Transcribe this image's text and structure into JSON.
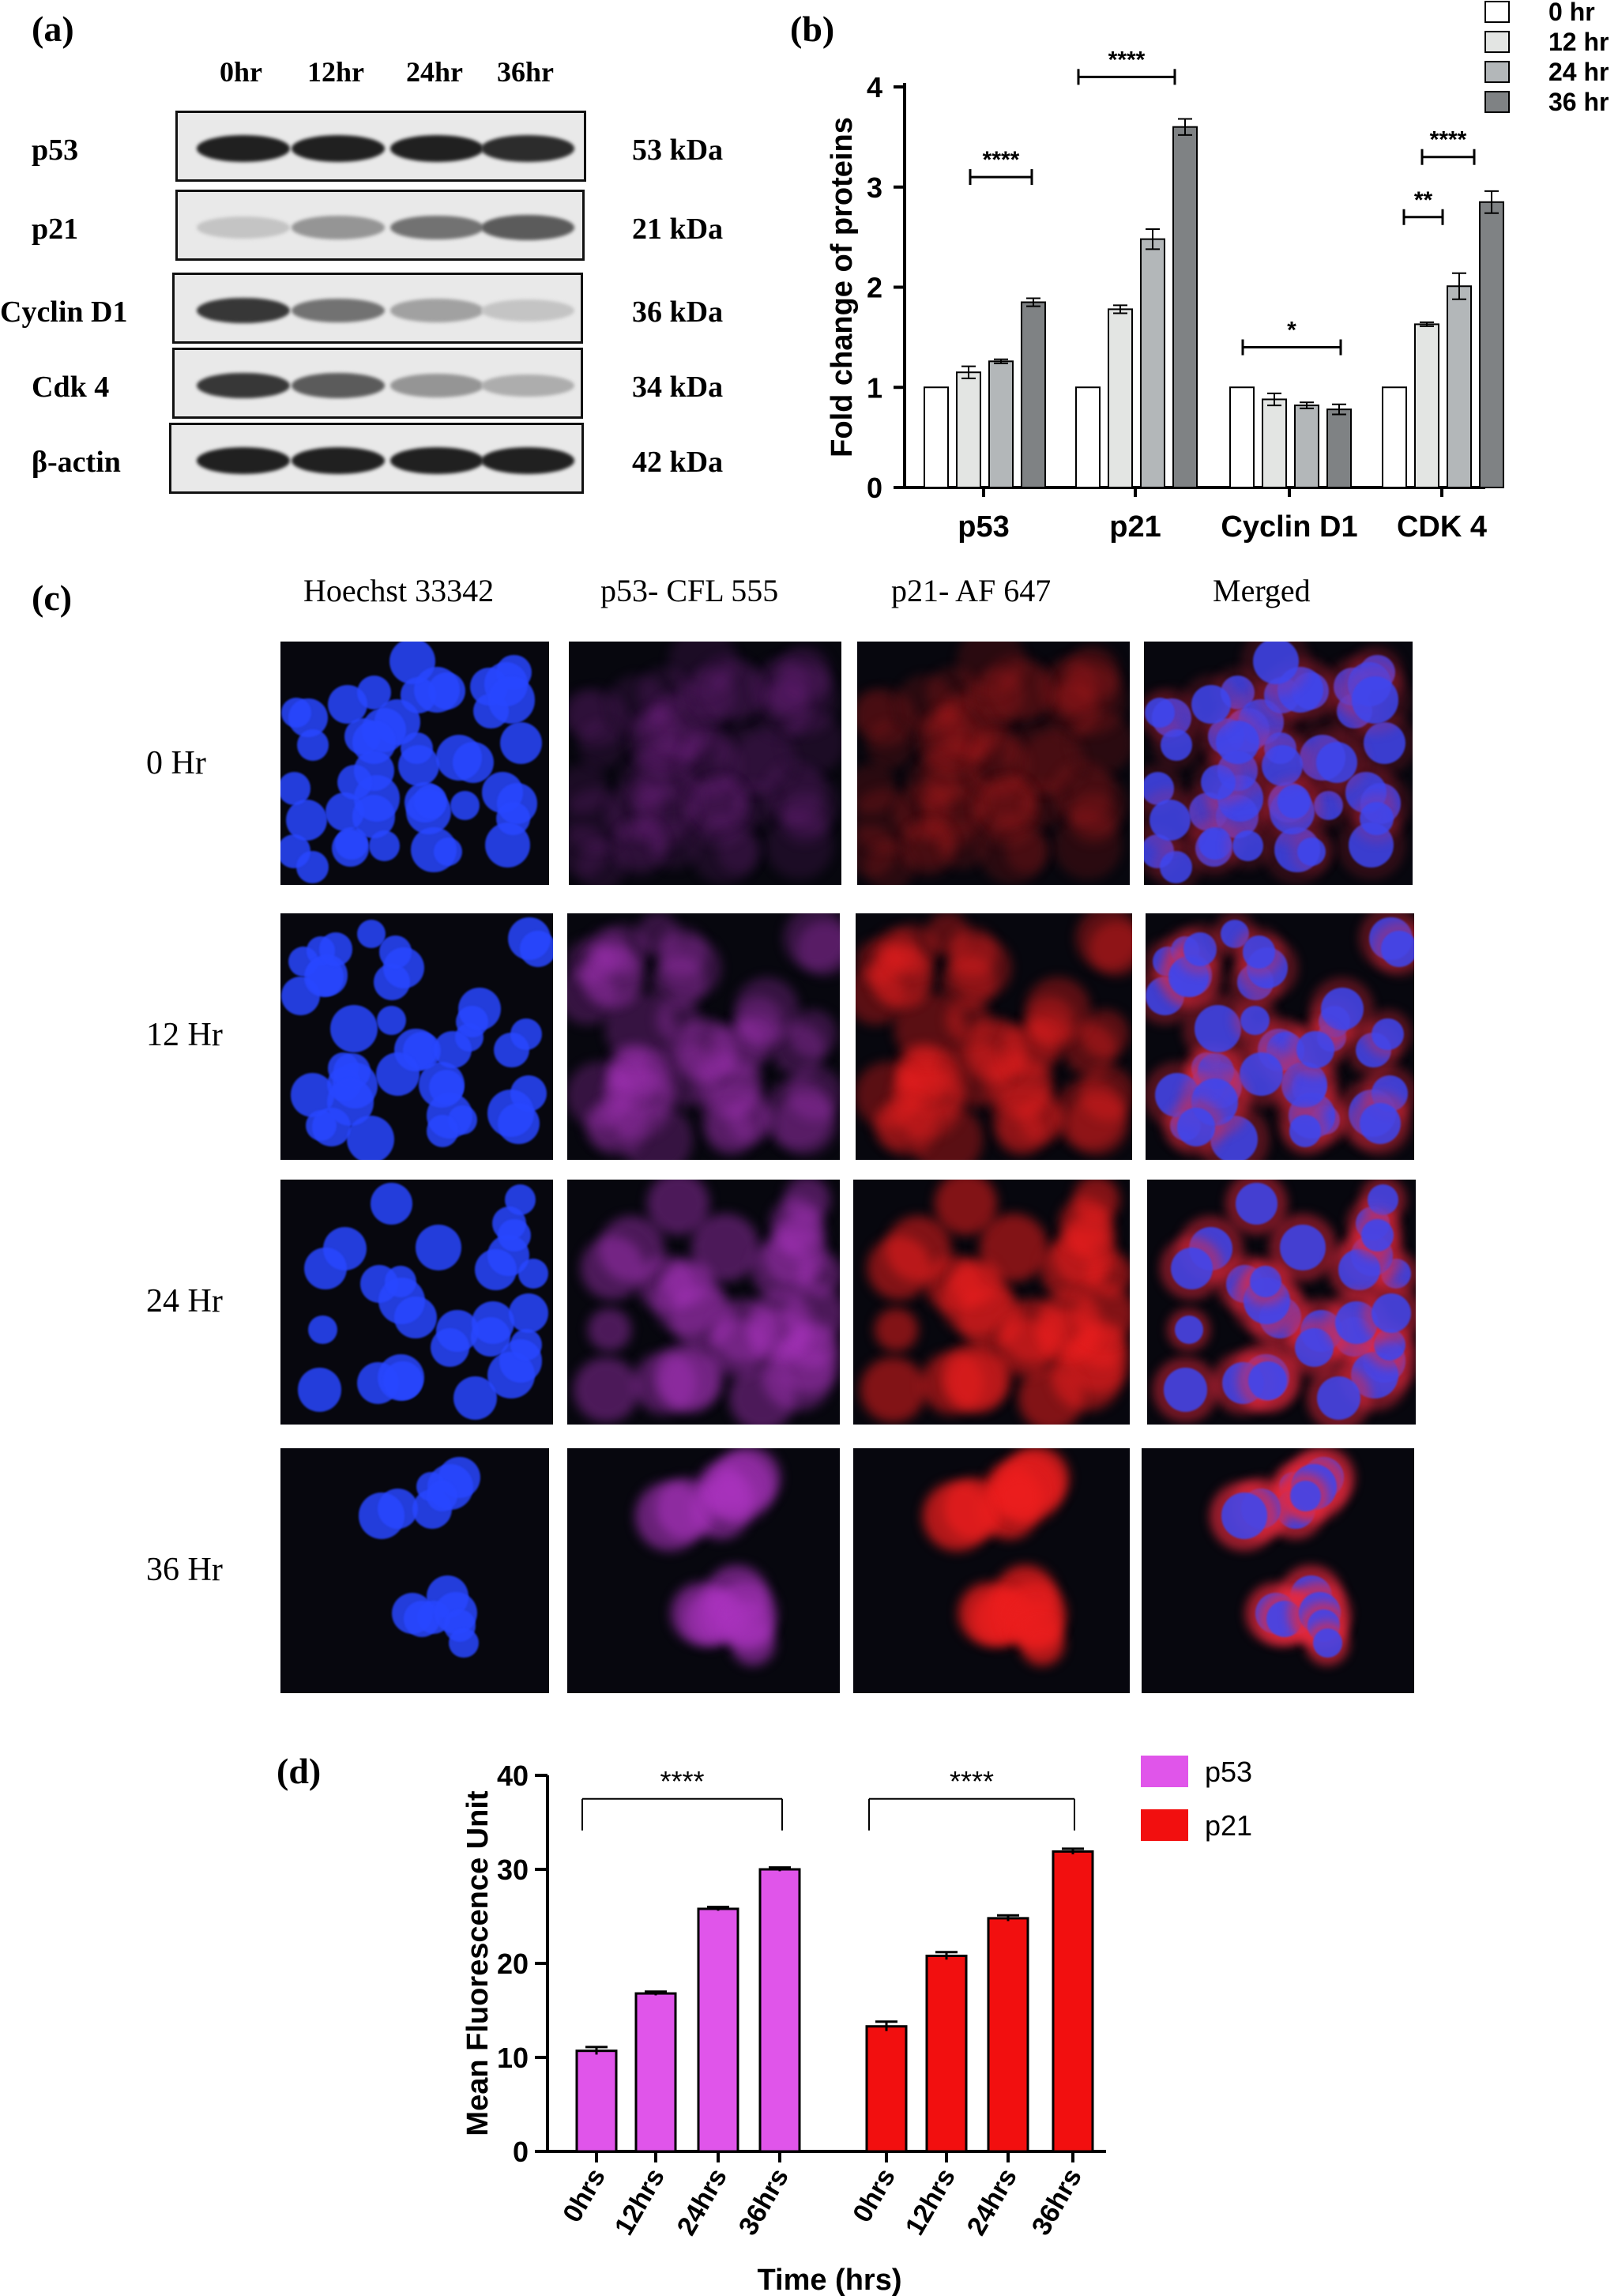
{
  "panel_a": {
    "letter": "(a)",
    "lanes": [
      "0hr",
      "12hr",
      "24hr",
      "36hr"
    ],
    "rows": [
      {
        "protein": "p53",
        "kda": "53 kDa",
        "intensity": [
          0.95,
          0.95,
          0.95,
          0.9
        ]
      },
      {
        "protein": "p21",
        "kda": "21 kDa",
        "intensity": [
          0.25,
          0.45,
          0.6,
          0.7
        ]
      },
      {
        "protein": "Cyclin D1",
        "kda": "36 kDa",
        "intensity": [
          0.85,
          0.6,
          0.4,
          0.25
        ]
      },
      {
        "protein": "Cdk 4",
        "kda": "34 kDa",
        "intensity": [
          0.85,
          0.7,
          0.45,
          0.35
        ]
      },
      {
        "protein": "β-actin",
        "kda": "42 kDa",
        "intensity": [
          0.95,
          0.95,
          0.95,
          0.95
        ]
      }
    ]
  },
  "panel_b": {
    "letter": "(b)",
    "legend": [
      "0 hr",
      "12 hr",
      "24 hr",
      "36 hr"
    ],
    "colors": [
      "#ffffff",
      "#e3e5e3",
      "#b3b7b9",
      "#7f8284"
    ],
    "ylabel": "Fold change of proteins",
    "yticks": [
      "0",
      "1",
      "2",
      "3",
      "4"
    ],
    "significance": [
      "****",
      "****",
      "*",
      "**",
      "****"
    ]
  },
  "panel_c": {
    "letter": "(c)",
    "columns": [
      "Hoechst 33342",
      "p53- CFL 555",
      "p21- AF 647",
      "Merged"
    ],
    "rows": [
      "0 Hr",
      "12 Hr",
      "24 Hr",
      "36 Hr"
    ]
  },
  "panel_d": {
    "letter": "(d)",
    "ylabel": "Mean Fluorescence Unit",
    "xlabel": "Time (hrs)",
    "yticks": [
      "0",
      "10",
      "20",
      "30",
      "40"
    ],
    "legend": [
      "p53",
      "p21"
    ],
    "colors": {
      "p53": "#e055ea",
      "p21": "#f20f0f"
    },
    "significance": [
      "****",
      "****"
    ]
  },
  "chart_data": [
    {
      "type": "bar",
      "categories": [
        "p53",
        "p21",
        "Cyclin D1",
        "CDK 4"
      ],
      "ylabel": "Fold change of proteins",
      "ylim": [
        0,
        4
      ],
      "series": [
        {
          "name": "0 hr",
          "values": [
            1.0,
            1.0,
            1.0,
            1.0
          ],
          "errors": [
            0,
            0,
            0,
            0
          ]
        },
        {
          "name": "12 hr",
          "values": [
            1.15,
            1.78,
            0.88,
            1.63
          ],
          "errors": [
            0.06,
            0.04,
            0.06,
            0.02
          ]
        },
        {
          "name": "24 hr",
          "values": [
            1.26,
            2.48,
            0.82,
            2.01
          ],
          "errors": [
            0.02,
            0.1,
            0.03,
            0.13
          ]
        },
        {
          "name": "36 hr",
          "values": [
            1.85,
            3.6,
            0.78,
            2.85
          ],
          "errors": [
            0.04,
            0.08,
            0.05,
            0.11
          ]
        }
      ],
      "legend_position": "top-right"
    },
    {
      "type": "bar",
      "categories": [
        "0hrs",
        "12hrs",
        "24hrs",
        "36hrs"
      ],
      "xlabel": "Time (hrs)",
      "ylabel": "Mean Fluorescence Unit",
      "ylim": [
        0,
        40
      ],
      "series": [
        {
          "name": "p53",
          "values": [
            10.7,
            16.8,
            25.8,
            30.0
          ],
          "errors": [
            0.4,
            0.2,
            0.2,
            0.2
          ]
        },
        {
          "name": "p21",
          "values": [
            13.3,
            20.8,
            24.8,
            31.9
          ],
          "errors": [
            0.5,
            0.4,
            0.3,
            0.3
          ]
        }
      ],
      "legend_position": "top-right"
    }
  ]
}
